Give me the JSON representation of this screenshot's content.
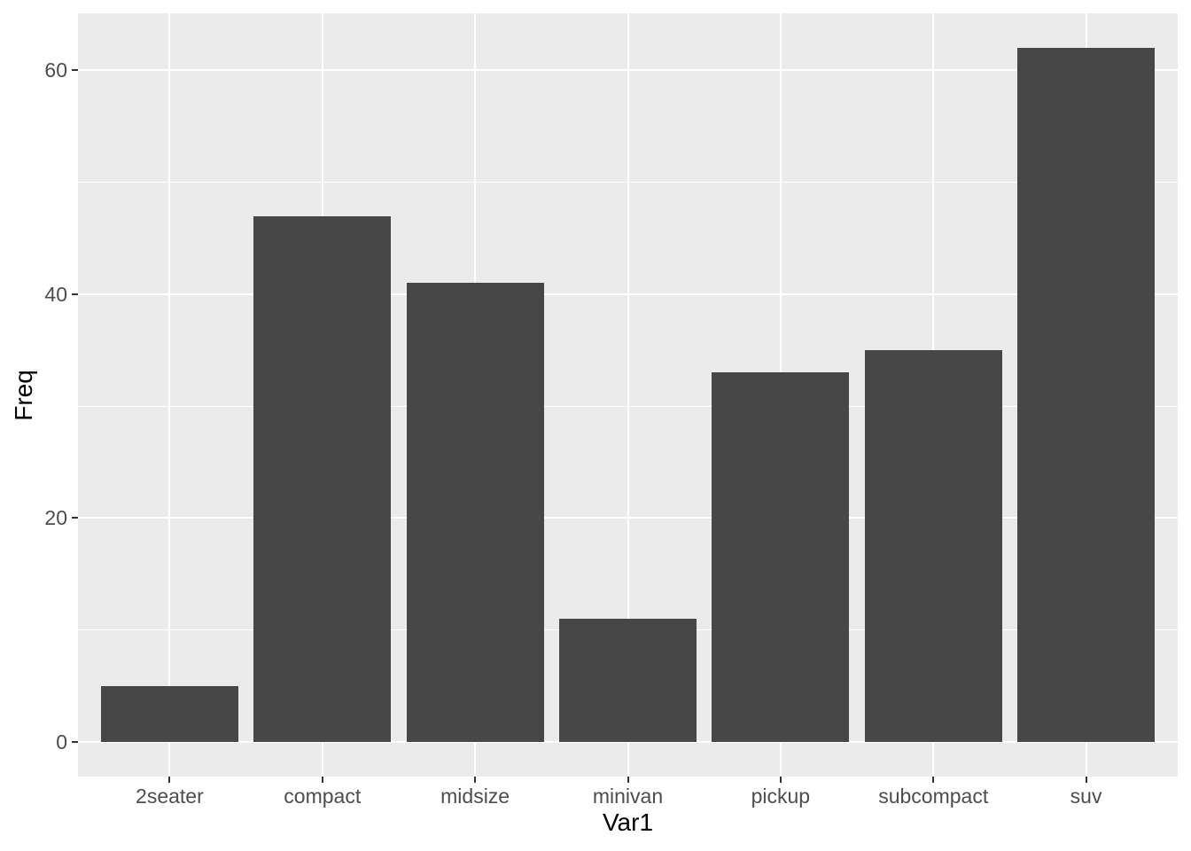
{
  "chart_data": {
    "type": "bar",
    "title": "",
    "xlabel": "Var1",
    "ylabel": "Freq",
    "categories": [
      "2seater",
      "compact",
      "midsize",
      "minivan",
      "pickup",
      "subcompact",
      "suv"
    ],
    "values": [
      5,
      47,
      41,
      11,
      33,
      35,
      62
    ],
    "y_major_ticks": [
      0,
      20,
      40,
      60
    ],
    "y_major_tick_labels": [
      "0",
      "20",
      "40",
      "60"
    ],
    "y_minor_ticks": [
      10,
      30,
      50
    ],
    "ylim": [
      -3.1,
      65.1
    ],
    "legend_position": "none",
    "grid": "white major+minor horizontal gridlines, white major vertical gridlines at category centers",
    "style": "ggplot2 theme_gray bar chart",
    "colors": {
      "bar_fill": "#474747",
      "panel_background": "#EBEBEB",
      "plot_background": "#FFFFFF",
      "gridline": "#FFFFFF",
      "tick_mark": "#333333",
      "axis_text": "#4D4D4D",
      "axis_title": "#000000"
    }
  }
}
